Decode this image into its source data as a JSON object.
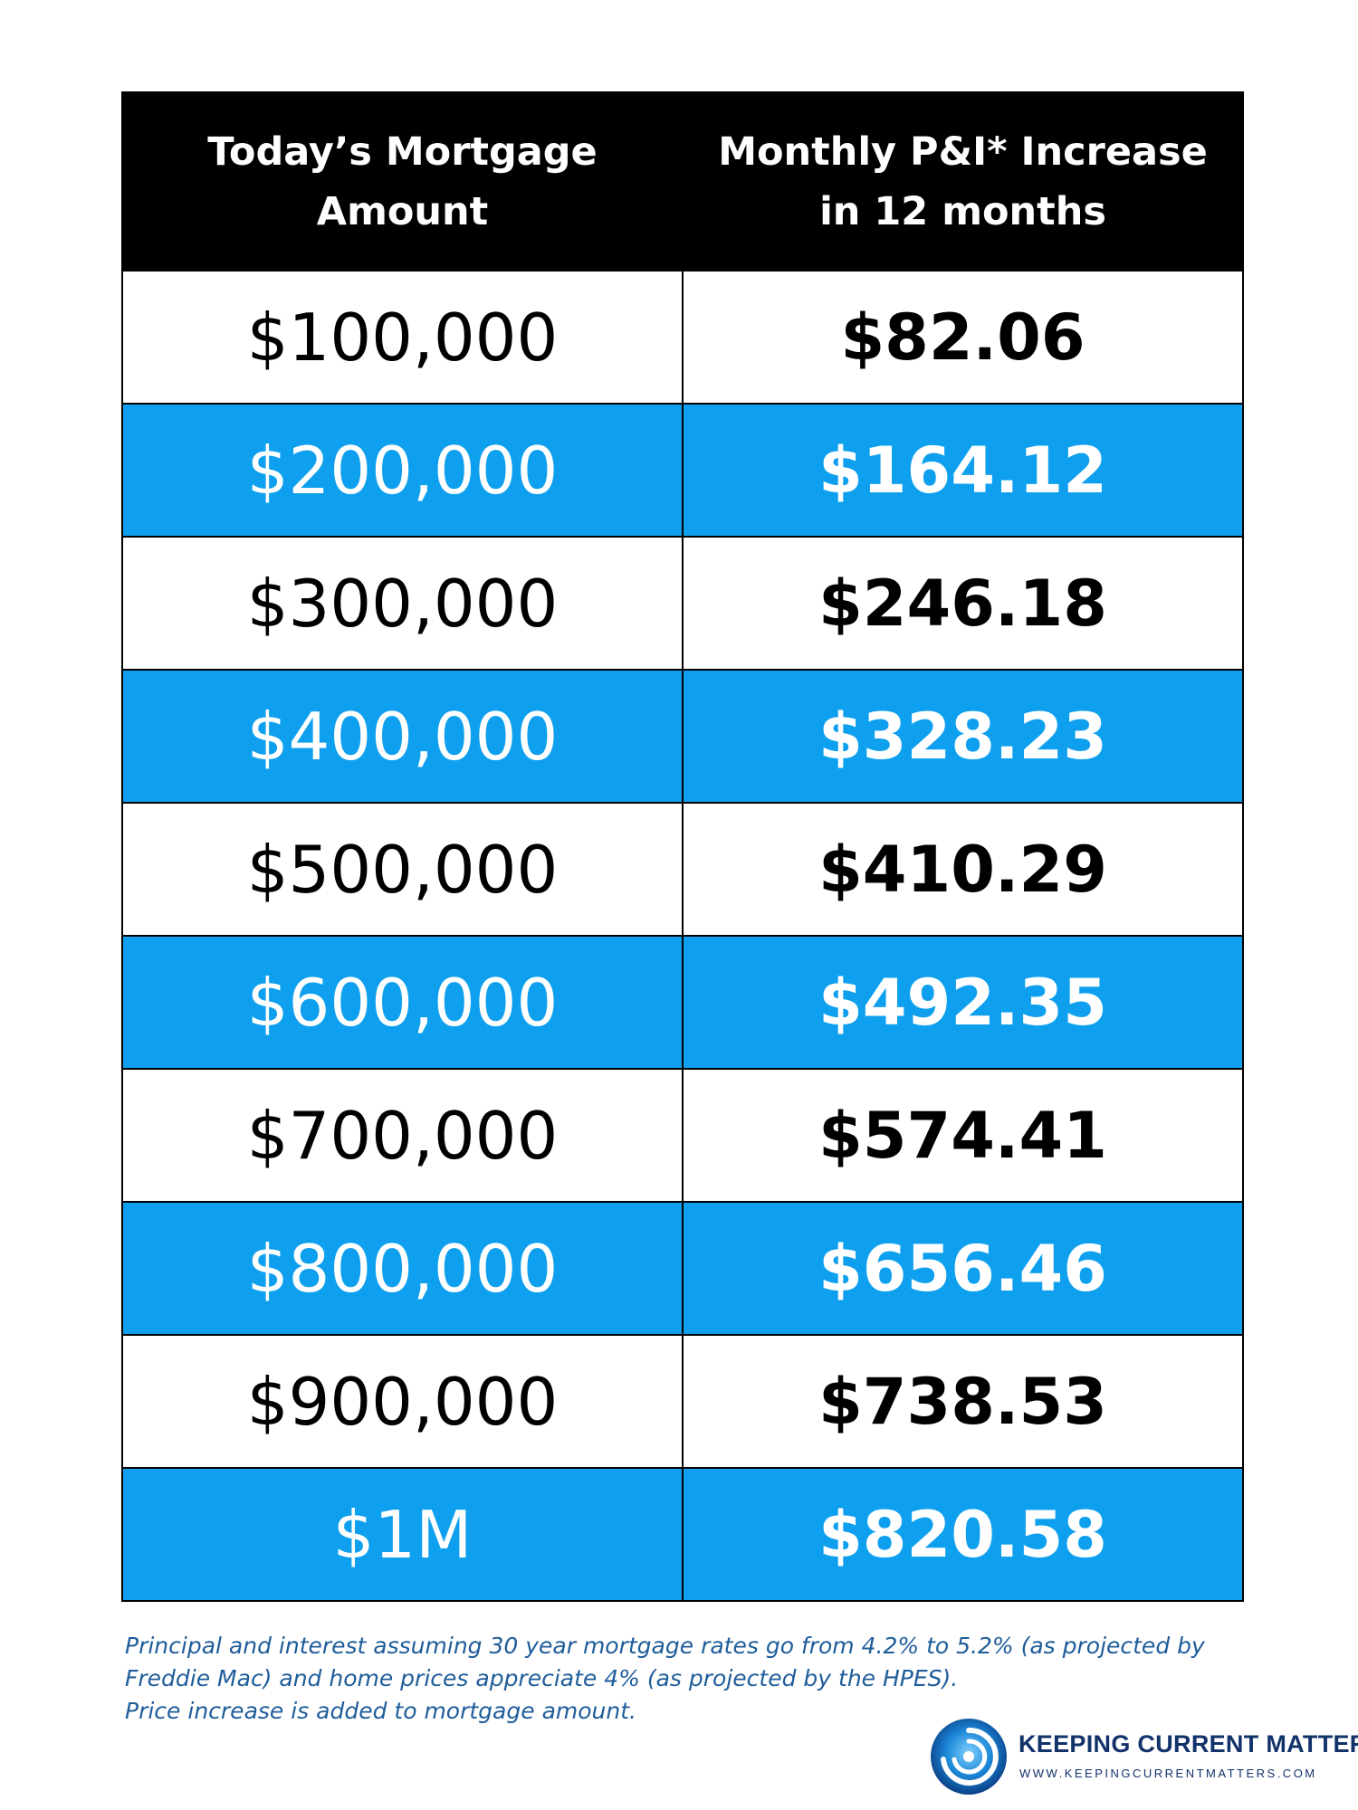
{
  "chart_data": {
    "type": "table",
    "columns": [
      "Today's Mortgage Amount",
      "Monthly P&I* Increase in 12 months"
    ],
    "header": {
      "col1_lines": [
        "Today’s Mortgage",
        "Amount"
      ],
      "col2_lines": [
        "Monthly P&I* Increase",
        "in 12 months"
      ]
    },
    "rows": [
      {
        "amount": "$100,000",
        "increase": "$82.06"
      },
      {
        "amount": "$200,000",
        "increase": "$164.12"
      },
      {
        "amount": "$300,000",
        "increase": "$246.18"
      },
      {
        "amount": "$400,000",
        "increase": "$328.23"
      },
      {
        "amount": "$500,000",
        "increase": "$410.29"
      },
      {
        "amount": "$600,000",
        "increase": "$492.35"
      },
      {
        "amount": "$700,000",
        "increase": "$574.41"
      },
      {
        "amount": "$800,000",
        "increase": "$656.46"
      },
      {
        "amount": "$900,000",
        "increase": "$738.53"
      },
      {
        "amount": "$1M",
        "increase": "$820.58"
      }
    ]
  },
  "footnote": {
    "line1": "Principal and interest assuming 30 year mortgage rates go from 4.2% to 5.2% (as projected by",
    "line2": "Freddie Mac) and home prices appreciate 4% (as projected by the HPES).",
    "line3": "Price increase is added to mortgage amount."
  },
  "brand": {
    "name": "KEEPING CURRENT MATTERS",
    "url": "WWW.KEEPINGCURRENTMATTERS.COM",
    "logo_icon": "swirl-logo-icon"
  },
  "colors": {
    "header_bg": "#000000",
    "stripe_blue": "#0ea0ee",
    "footnote_text": "#1f5d9a",
    "brand_text": "#12326a"
  }
}
